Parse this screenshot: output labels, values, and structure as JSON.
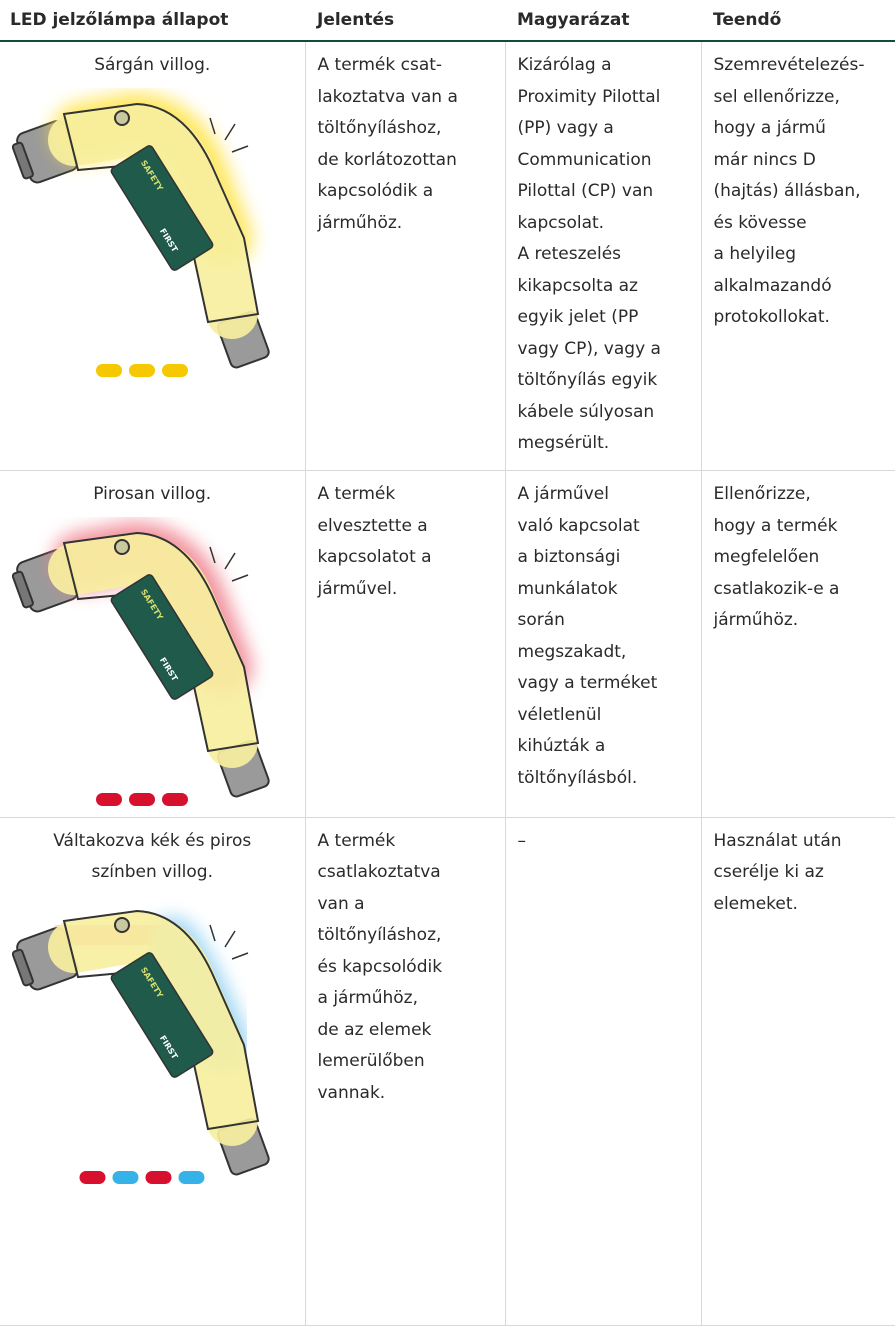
{
  "header": {
    "columns": [
      "LED jelzőlámpa állapot",
      "Jelentés",
      "Magyarázat",
      "Teendő"
    ]
  },
  "illustration_labels": [
    "SAFETY",
    "FIRST"
  ],
  "table": {
    "rows": [
      {
        "state": [
          "Sárgán villog."
        ],
        "meaning": [
          "A termék csat-",
          "lakoztatva van a",
          "töltőnyíláshoz,",
          "de korlátozottan",
          "kapcsolódik a",
          "járműhöz."
        ],
        "explanation": [
          "Kizárólag a",
          "Proximity Pilottal",
          "(PP) vagy a",
          "Communication",
          "Pilottal (CP) van",
          "kapcsolat.",
          "A reteszelés",
          "kikapcsolta az",
          "egyik jelet (PP",
          "vagy CP), vagy a",
          "töltőnyílás egyik",
          "kábele súlyosan",
          "megsérült."
        ],
        "action": [
          "Szemrevételezés-",
          "sel ellenőrizze,",
          "hogy a jármű",
          "már nincs D",
          "(hajtás) állásban,",
          "és kövesse",
          "a helyileg",
          "alkalmazandó",
          "protokollokat."
        ],
        "glow": [
          "#ffe23c"
        ],
        "indicators": [
          "#f5c800",
          "#f5c800",
          "#f5c800"
        ]
      },
      {
        "state": [
          "Pirosan villog."
        ],
        "meaning": [
          "A termék",
          "elvesztette a",
          "kapcsolatot a",
          "járművel."
        ],
        "explanation": [
          "A járművel",
          "való kapcsolat",
          "a biztonsági",
          "munkálatok",
          "során",
          "megszakadt,",
          "vagy a terméket",
          "véletlenül",
          "kihúzták a",
          "töltőnyílásból."
        ],
        "action": [
          "Ellenőrizze,",
          "hogy a termék",
          "megfelelően",
          "csatlakozik-e a",
          "járműhöz."
        ],
        "glow": [
          "#f07f8c"
        ],
        "indicators": [
          "#d7102e",
          "#d7102e",
          "#d7102e"
        ]
      },
      {
        "state": [
          "Váltakozva kék és piros",
          "színben villog."
        ],
        "meaning": [
          "A termék",
          "csatlakoztatva",
          "van a",
          "töltőnyíláshoz,",
          "és kapcsolódik",
          "a járműhöz,",
          "de az elemek",
          "lemerülőben",
          "vannak."
        ],
        "explanation": [
          "–"
        ],
        "action": [
          "Használat után",
          "cserélje ki az",
          "elemeket."
        ],
        "glow": [
          "#f07f8c",
          "#8ccff2"
        ],
        "indicators": [
          "#d7102e",
          "#35b3e8",
          "#d7102e",
          "#35b3e8"
        ]
      }
    ]
  }
}
